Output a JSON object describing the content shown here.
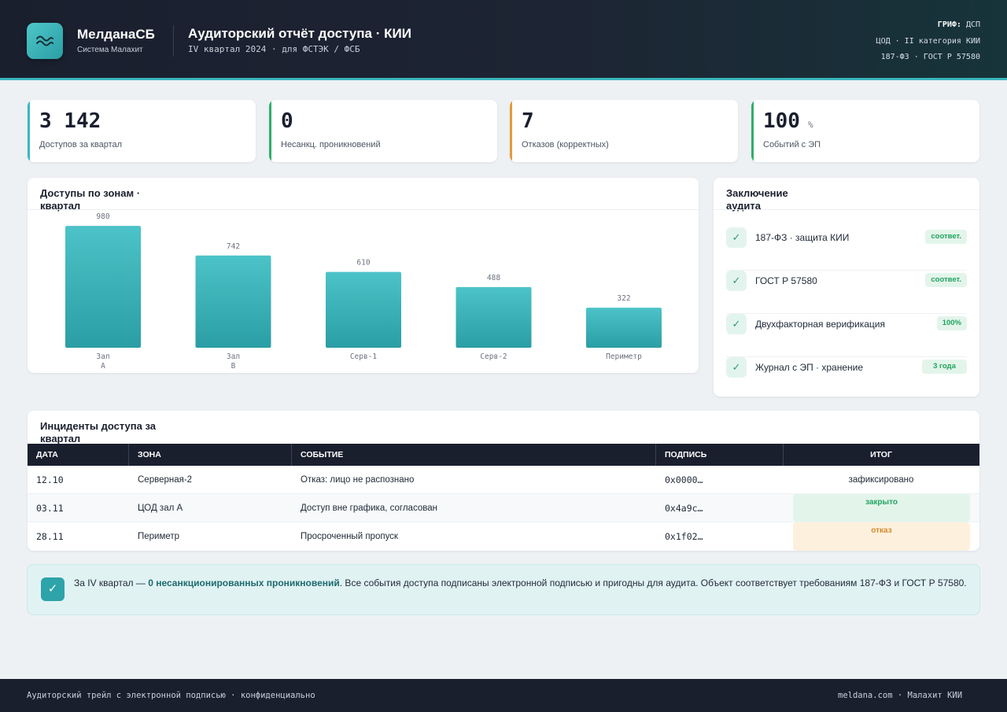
{
  "header": {
    "brand_name": "МелданаСБ",
    "brand_sub": "Система Малахит",
    "title": "Аудиторский отчёт доступа · КИИ",
    "subtitle": "IV квартал 2024 · для ФСТЭК / ФСБ",
    "grif_label": "ГРИФ:",
    "grif_value": "ДСП",
    "category": "ЦОД · II категория КИИ",
    "standards": "187-ФЗ · ГОСТ Р 57580"
  },
  "kpis": [
    {
      "value": "3 142",
      "unit": "",
      "label": "Доступов за квартал",
      "color": "#3bb6bd"
    },
    {
      "value": "0",
      "unit": "",
      "label": "Несанкц. проникновений",
      "color": "#2fae6b"
    },
    {
      "value": "7",
      "unit": "",
      "label": "Отказов (корректных)",
      "color": "#e49a3a"
    },
    {
      "value": "100",
      "unit": "%",
      "label": "Событий с ЭП",
      "color": "#2fae6b"
    }
  ],
  "chart_panel": {
    "title": "Доступы по зонам · квартал"
  },
  "chart_data": {
    "type": "bar",
    "categories": [
      "Зал А",
      "Зал В",
      "Серв-1",
      "Серв-2",
      "Периметр"
    ],
    "values": [
      980,
      742,
      610,
      488,
      322
    ],
    "title": "Доступы по зонам · квартал",
    "xlabel": "",
    "ylabel": "",
    "ylim": [
      0,
      1000
    ],
    "bar_color": "#3bb6bd"
  },
  "conclusion": {
    "title": "Заключение аудита",
    "items": [
      {
        "text": "187-ФЗ · защита КИИ",
        "badge": "соответ."
      },
      {
        "text": "ГОСТ Р 57580",
        "badge": "соответ."
      },
      {
        "text": "Двухфакторная верификация",
        "badge": "100%"
      },
      {
        "text": "Журнал с ЭП · хранение",
        "badge": "3 года"
      }
    ]
  },
  "incidents": {
    "title": "Инциденты доступа за квартал",
    "columns": [
      "ДАТА",
      "ЗОНА",
      "СОБЫТИЕ",
      "ПОДПИСЬ",
      "ИТОГ"
    ],
    "rows": [
      {
        "date": "12.10",
        "zone": "Серверная-2",
        "event": "Отказ: лицо не распознано",
        "sig": "0x0000…",
        "result": "зафиксировано",
        "status": "plain"
      },
      {
        "date": "03.11",
        "zone": "ЦОД зал А",
        "event": "Доступ вне графика, согласован",
        "sig": "0x4a9c…",
        "result": "закрыто",
        "status": "ok"
      },
      {
        "date": "28.11",
        "zone": "Периметр",
        "event": "Просроченный пропуск",
        "sig": "0x1f02…",
        "result": "отказ",
        "status": "deny"
      }
    ]
  },
  "summary": {
    "prefix": "За IV квартал — ",
    "highlight": "0 несанкционированных проникновений",
    "rest": ". Все события доступа подписаны электронной подписью и пригодны для аудита. Объект соответствует требованиям 187-ФЗ и ГОСТ Р 57580."
  },
  "footer": {
    "left": "Аудиторский трейл с электронной подписью · конфиденциально",
    "right": "meldana.com · Малахит КИИ"
  }
}
